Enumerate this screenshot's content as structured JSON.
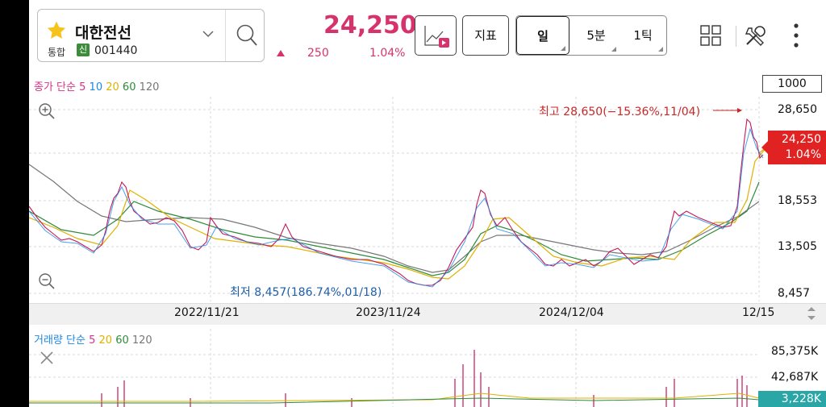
{
  "header": {
    "stock_name": "대한전선",
    "market": "통합",
    "credit_badge": "신",
    "code": "001440",
    "price": "24,250",
    "change": "250",
    "change_rate": "1.04%"
  },
  "toolbar": {
    "indicator_label": "지표",
    "periods": [
      "일",
      "5분",
      "1틱"
    ]
  },
  "chart": {
    "ma_legend": {
      "prefix": "종가 단순",
      "periods": [
        "5",
        "10",
        "20",
        "60",
        "120"
      ]
    },
    "scale_box": "1000",
    "price_axis": [
      "28,650",
      "18,553",
      "13,505",
      "8,457"
    ],
    "current_price_tag": "24,250",
    "current_rate_tag": "1.04%",
    "high_annotation": "최고 28,650(−15.36%,11/04)",
    "low_annotation": "최저 8,457(186.74%,01/18)",
    "dates": [
      "2022/11/21",
      "2023/11/24",
      "2024/12/04",
      "12/15"
    ]
  },
  "volume": {
    "legend": {
      "prefix": "거래량 단순",
      "periods": [
        "5",
        "20",
        "60",
        "120"
      ]
    },
    "axis": [
      "85,375K",
      "42,687K"
    ],
    "current_tag": "3,228K"
  },
  "colors": {
    "accent": "#d6336c",
    "ma5": "#d63384",
    "ma10": "#1e88e5",
    "ma20": "#e0b000",
    "ma60": "#2e8b3a",
    "ma120": "#777777",
    "up": "#e02222",
    "down": "#1e5fa8"
  }
}
